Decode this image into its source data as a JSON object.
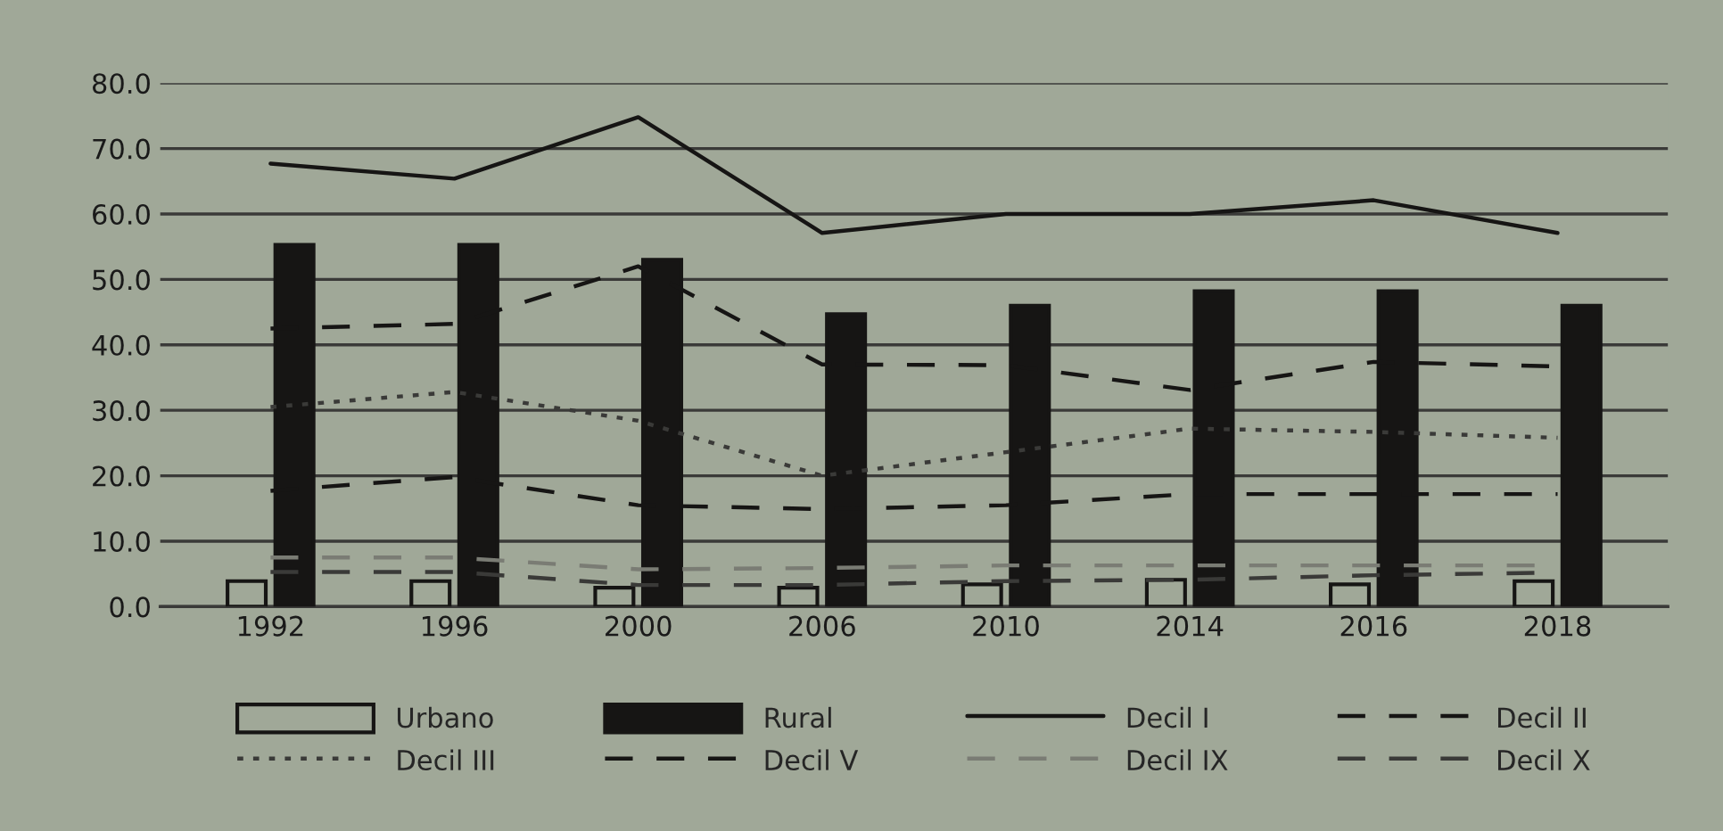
{
  "chart_data": {
    "type": "bar",
    "categories": [
      "1992",
      "1996",
      "2000",
      "2006",
      "2010",
      "2014",
      "2016",
      "2018"
    ],
    "series": [
      {
        "name": "Urbano",
        "color": "#a0a898",
        "values": [
          3.9,
          3.9,
          2.9,
          2.9,
          3.4,
          4.1,
          3.4,
          3.9
        ]
      },
      {
        "name": "Rural",
        "color": "#161514",
        "values": [
          55.3,
          55.3,
          53.0,
          44.7,
          46.0,
          48.2,
          48.2,
          46.0
        ]
      },
      {
        "name": "Decil I",
        "type": "line",
        "color": "#161514",
        "line_style": "solid",
        "values": [
          67.7,
          65.4,
          74.8,
          57.1,
          60.0,
          60.0,
          62.1,
          57.1
        ]
      },
      {
        "name": "Decil II",
        "type": "line",
        "color": "#161514",
        "line_style": "dashed",
        "values": [
          42.5,
          43.2,
          52.0,
          37.0,
          36.9,
          33.1,
          37.4,
          36.7
        ]
      },
      {
        "name": "Decil III",
        "type": "line",
        "color": "#3a3a38",
        "line_style": "dotted",
        "values": [
          30.5,
          32.8,
          28.4,
          20.0,
          23.6,
          27.2,
          26.7,
          25.8
        ]
      },
      {
        "name": "Decil V",
        "type": "line",
        "color": "#161514",
        "line_style": "dashed",
        "values": [
          17.7,
          19.8,
          15.5,
          14.9,
          15.5,
          17.2,
          17.2,
          17.2
        ]
      },
      {
        "name": "Decil IX",
        "type": "line",
        "color": "#7a7c74",
        "line_style": "dashed",
        "values": [
          7.5,
          7.5,
          5.7,
          5.9,
          6.3,
          6.3,
          6.3,
          6.3
        ]
      },
      {
        "name": "Decil X",
        "type": "line",
        "color": "#3a3a38",
        "line_style": "dashed",
        "values": [
          5.3,
          5.3,
          3.3,
          3.3,
          3.9,
          4.1,
          4.8,
          5.2
        ]
      }
    ],
    "ylim": [
      0,
      80
    ],
    "yticks": [
      {
        "value": 0,
        "label": "0.0"
      },
      {
        "value": 10,
        "label": "10.0"
      },
      {
        "value": 20,
        "label": "20.0"
      },
      {
        "value": 30,
        "label": "30.0"
      },
      {
        "value": 40,
        "label": "40.0"
      },
      {
        "value": 50,
        "label": "50.0"
      },
      {
        "value": 60,
        "label": "60.0"
      },
      {
        "value": 70,
        "label": "70.0"
      },
      {
        "value": 80,
        "label": "80.0"
      }
    ],
    "grid": "y",
    "legend": "bottom"
  }
}
